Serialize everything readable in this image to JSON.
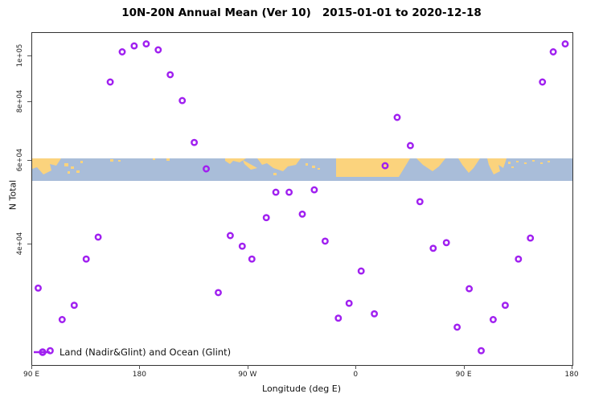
{
  "title": "10N-20N Annual Mean (Ver 10)   2015-01-01 to 2020-12-18",
  "legend": {
    "label": "Land (Nadir&Glint) and Ocean (Glint)"
  },
  "colors": {
    "point": "#A020F0",
    "ocean": "#a9bdd9",
    "land": "#fbd37d",
    "axis": "#333333"
  },
  "chart_data": {
    "type": "scatter",
    "title": "10N-20N Annual Mean (Ver 10)   2015-01-01 to 2020-12-18",
    "xlabel": "Longitude (deg E)",
    "ylabel": "N Total",
    "legend_entries": [
      "Land (Nadir&Glint) and Ocean (Glint)"
    ],
    "x_axis": {
      "note": "longitude, continuous deg E wrapping 90E->180->90W->0->90E->180",
      "range": [
        90,
        540
      ],
      "ticks": [
        {
          "lon": 90,
          "label": "90 E"
        },
        {
          "lon": 180,
          "label": "180"
        },
        {
          "lon": 270,
          "label": "90 W"
        },
        {
          "lon": 360,
          "label": "0"
        },
        {
          "lon": 450,
          "label": "90 E"
        },
        {
          "lon": 540,
          "label": "180"
        }
      ]
    },
    "y_axis": {
      "scale": "log10",
      "range": [
        22300,
        111800
      ],
      "ticks": [
        {
          "v": 100000,
          "label": "1e+05"
        },
        {
          "v": 80000,
          "label": "8e+04"
        },
        {
          "v": 60000,
          "label": "6e+04"
        },
        {
          "v": 40000,
          "label": "4e+04"
        }
      ]
    },
    "map_band": {
      "description": "world coastline strip for 10N-20N latitude band",
      "value_top": 60800,
      "value_bottom": 54500
    },
    "point_style": {
      "shape": "open-circle",
      "color": "#A020F0"
    },
    "points": [
      {
        "lon": 95,
        "n": 32400
      },
      {
        "lon": 105,
        "n": 23900
      },
      {
        "lon": 115,
        "n": 27800
      },
      {
        "lon": 125,
        "n": 29800
      },
      {
        "lon": 135,
        "n": 37300
      },
      {
        "lon": 145,
        "n": 41500
      },
      {
        "lon": 155,
        "n": 88100
      },
      {
        "lon": 165,
        "n": 102000
      },
      {
        "lon": 175,
        "n": 105000
      },
      {
        "lon": 185,
        "n": 106000
      },
      {
        "lon": 195,
        "n": 103000
      },
      {
        "lon": 205,
        "n": 91300
      },
      {
        "lon": 215,
        "n": 80500
      },
      {
        "lon": 225,
        "n": 65700
      },
      {
        "lon": 235,
        "n": 57800
      },
      {
        "lon": 245,
        "n": 31700
      },
      {
        "lon": 255,
        "n": 41800
      },
      {
        "lon": 265,
        "n": 39700
      },
      {
        "lon": 273,
        "n": 37300
      },
      {
        "lon": 285,
        "n": 45600
      },
      {
        "lon": 293,
        "n": 51600
      },
      {
        "lon": 304,
        "n": 51600
      },
      {
        "lon": 315,
        "n": 46400
      },
      {
        "lon": 325,
        "n": 52200
      },
      {
        "lon": 334,
        "n": 40700
      },
      {
        "lon": 345,
        "n": 28000
      },
      {
        "lon": 354,
        "n": 30100
      },
      {
        "lon": 364,
        "n": 35200
      },
      {
        "lon": 375,
        "n": 28600
      },
      {
        "lon": 384,
        "n": 58700
      },
      {
        "lon": 394,
        "n": 74200
      },
      {
        "lon": 405,
        "n": 64700
      },
      {
        "lon": 413,
        "n": 49300
      },
      {
        "lon": 424,
        "n": 39300
      },
      {
        "lon": 435,
        "n": 40400
      },
      {
        "lon": 444,
        "n": 26800
      },
      {
        "lon": 454,
        "n": 32300
      },
      {
        "lon": 464,
        "n": 23900
      },
      {
        "lon": 474,
        "n": 27800
      },
      {
        "lon": 484,
        "n": 29800
      },
      {
        "lon": 495,
        "n": 37300
      },
      {
        "lon": 505,
        "n": 41300
      },
      {
        "lon": 515,
        "n": 88100
      },
      {
        "lon": 524,
        "n": 102000
      },
      {
        "lon": 534,
        "n": 106000
      }
    ]
  }
}
